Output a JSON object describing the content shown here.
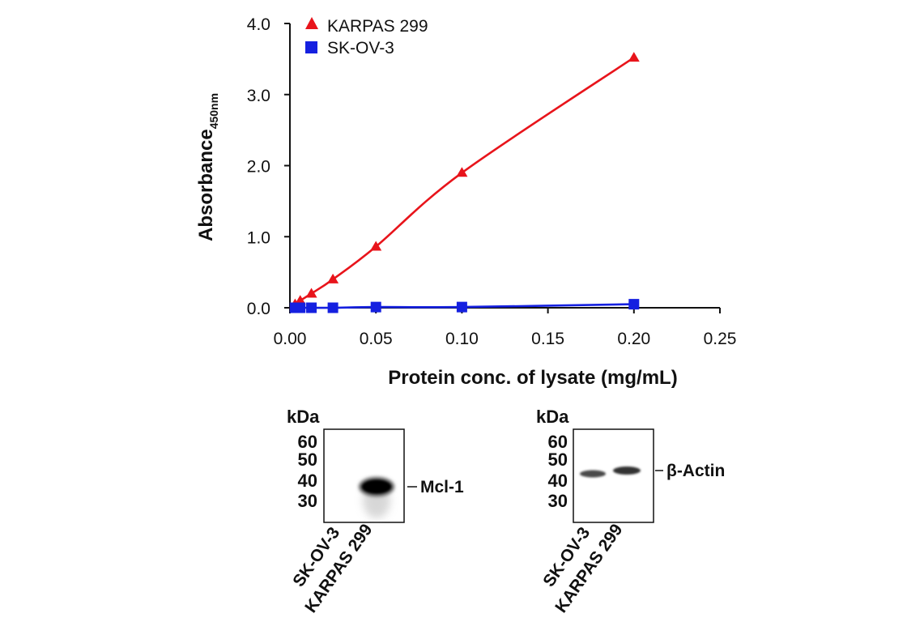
{
  "chart_data": {
    "type": "line",
    "title": "",
    "xlabel": "Protein conc. of lysate (mg/mL)",
    "ylabel_main": "Absorbance",
    "ylabel_subscript": "450nm",
    "xlim": [
      0,
      0.25
    ],
    "ylim": [
      0,
      4.0
    ],
    "xticks": [
      "0.00",
      "0.05",
      "0.10",
      "0.15",
      "0.20",
      "0.25"
    ],
    "yticks": [
      "0.0",
      "1.0",
      "2.0",
      "3.0",
      "4.0"
    ],
    "legend_position": "top-left",
    "series": [
      {
        "name": "KARPAS 299",
        "color": "#e8141b",
        "marker": "triangle",
        "x": [
          0.003,
          0.006,
          0.0125,
          0.025,
          0.05,
          0.1,
          0.2
        ],
        "y": [
          0.05,
          0.1,
          0.2,
          0.4,
          0.86,
          1.9,
          3.52
        ]
      },
      {
        "name": "SK-OV-3",
        "color": "#1520e0",
        "marker": "square",
        "x": [
          0.003,
          0.006,
          0.0125,
          0.025,
          0.05,
          0.1,
          0.2
        ],
        "y": [
          0.0,
          0.0,
          0.0,
          0.0,
          0.01,
          0.01,
          0.05
        ]
      }
    ]
  },
  "blots": {
    "kda_label": "kDa",
    "left": {
      "markers": [
        "60",
        "50",
        "40",
        "30"
      ],
      "target": "Mcl-1",
      "lanes": [
        "SK-OV-3",
        "KARPAS 299"
      ]
    },
    "right": {
      "markers": [
        "60",
        "50",
        "40",
        "30"
      ],
      "target": "β-Actin",
      "lanes": [
        "SK-OV-3",
        "KARPAS 299"
      ]
    }
  }
}
